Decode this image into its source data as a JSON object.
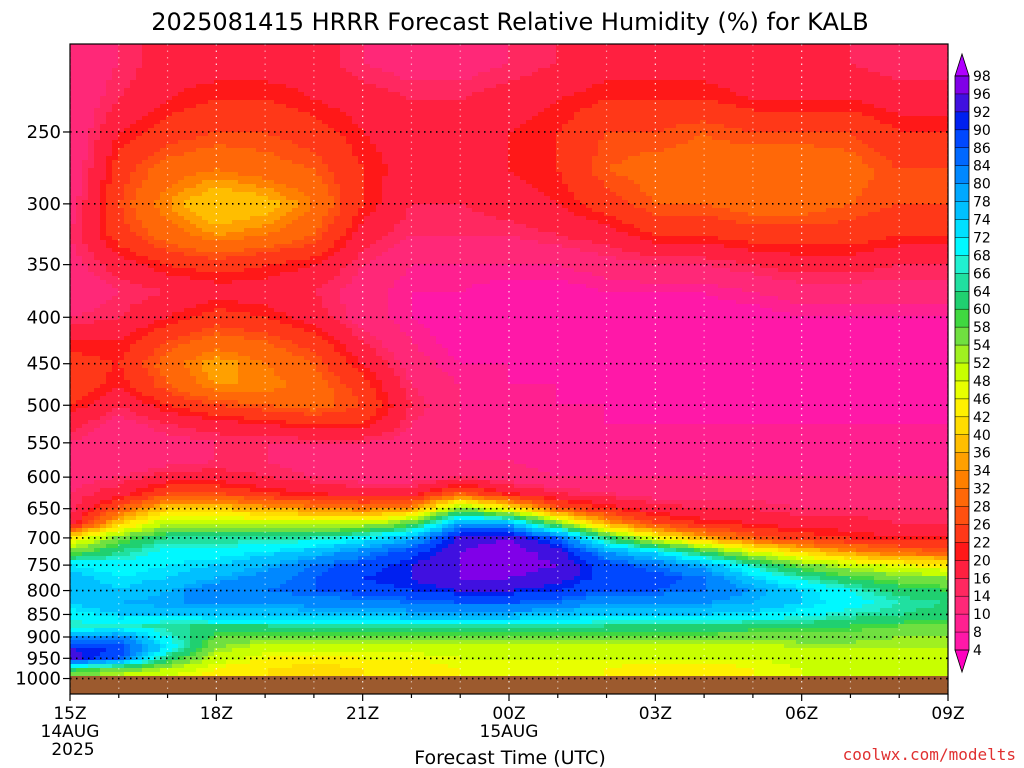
{
  "chart_data": {
    "type": "heatmap",
    "title": "2025081415 HRRR Forecast Relative Humidity (%) for KALB",
    "xlabel": "Forecast Time (UTC)",
    "ylabel": "",
    "credit": "coolwx.com/modelts",
    "y_scale": "log",
    "y_reversed": true,
    "ylim": [
      1040,
      200
    ],
    "y_ticks": [
      250,
      300,
      350,
      400,
      450,
      500,
      550,
      600,
      650,
      700,
      750,
      800,
      850,
      900,
      950,
      1000
    ],
    "x_ticks": [
      {
        "h": 15,
        "label": "15Z",
        "sub1": "14AUG",
        "sub2": "2025"
      },
      {
        "h": 18,
        "label": "18Z",
        "sub1": "",
        "sub2": ""
      },
      {
        "h": 21,
        "label": "21Z",
        "sub1": "",
        "sub2": ""
      },
      {
        "h": 24,
        "label": "00Z",
        "sub1": "15AUG",
        "sub2": ""
      },
      {
        "h": 27,
        "label": "03Z",
        "sub1": "",
        "sub2": ""
      },
      {
        "h": 30,
        "label": "06Z",
        "sub1": "",
        "sub2": ""
      },
      {
        "h": 33,
        "label": "09Z",
        "sub1": "",
        "sub2": ""
      }
    ],
    "xlim": [
      15,
      33
    ],
    "grid": true,
    "ground_color": "#9c5a2e",
    "colorbar": {
      "levels": [
        4,
        8,
        10,
        14,
        16,
        20,
        22,
        26,
        28,
        32,
        34,
        36,
        40,
        42,
        46,
        48,
        52,
        54,
        58,
        60,
        64,
        66,
        68,
        72,
        74,
        78,
        80,
        84,
        86,
        90,
        92,
        96,
        98
      ],
      "colors": [
        "#ff00c0",
        "#ff18a8",
        "#ff2090",
        "#ff2878",
        "#ff2860",
        "#ff2040",
        "#ff1818",
        "#ff3818",
        "#ff5010",
        "#ff6808",
        "#ff8000",
        "#ffa000",
        "#ffbe00",
        "#ffdc00",
        "#fff000",
        "#e8ff00",
        "#c8ff00",
        "#a0f020",
        "#70e040",
        "#40d840",
        "#20d070",
        "#20e0a0",
        "#20f0d0",
        "#00f8ff",
        "#00e0ff",
        "#00c0ff",
        "#00a8ff",
        "#0088ff",
        "#0068ff",
        "#0048ff",
        "#0020f0",
        "#4010e0",
        "#8000e8",
        "#b000ff"
      ]
    },
    "profiles": {
      "hours": [
        15,
        16,
        17,
        18,
        19,
        20,
        21,
        22,
        23,
        24,
        25,
        26,
        27,
        28,
        29,
        30,
        31,
        32,
        33
      ],
      "pressures": [
        210,
        230,
        250,
        275,
        300,
        325,
        350,
        375,
        400,
        425,
        450,
        475,
        500,
        525,
        550,
        575,
        600,
        625,
        650,
        675,
        700,
        725,
        750,
        775,
        800,
        825,
        850,
        875,
        900,
        925,
        950,
        975,
        1000
      ],
      "rh": [
        [
          10,
          10,
          10,
          10,
          12,
          14,
          12,
          10,
          14,
          20,
          24,
          26,
          22,
          18,
          14,
          12,
          12,
          14,
          14,
          18,
          42,
          56,
          72,
          76,
          78,
          74,
          70,
          66,
          80,
          92,
          94,
          62,
          52
        ],
        [
          14,
          16,
          20,
          24,
          26,
          24,
          18,
          14,
          16,
          20,
          22,
          20,
          16,
          12,
          10,
          10,
          14,
          18,
          28,
          40,
          56,
          64,
          70,
          72,
          74,
          78,
          74,
          68,
          82,
          90,
          86,
          58,
          48
        ],
        [
          18,
          20,
          24,
          30,
          34,
          30,
          22,
          16,
          20,
          26,
          30,
          28,
          22,
          16,
          12,
          12,
          18,
          26,
          40,
          52,
          64,
          70,
          72,
          74,
          78,
          80,
          74,
          64,
          68,
          72,
          62,
          52,
          46
        ],
        [
          18,
          22,
          26,
          32,
          40,
          34,
          24,
          18,
          24,
          30,
          36,
          34,
          26,
          18,
          14,
          14,
          18,
          26,
          40,
          52,
          64,
          70,
          74,
          78,
          84,
          80,
          76,
          64,
          58,
          54,
          50,
          46,
          44
        ],
        [
          18,
          22,
          26,
          30,
          38,
          32,
          22,
          18,
          22,
          28,
          32,
          34,
          28,
          20,
          14,
          14,
          16,
          22,
          36,
          50,
          64,
          72,
          78,
          82,
          84,
          80,
          76,
          64,
          56,
          50,
          46,
          42,
          42
        ],
        [
          18,
          20,
          24,
          28,
          32,
          28,
          20,
          16,
          18,
          24,
          28,
          30,
          30,
          22,
          14,
          12,
          14,
          20,
          34,
          50,
          66,
          76,
          84,
          86,
          86,
          82,
          76,
          66,
          56,
          50,
          44,
          40,
          40
        ],
        [
          14,
          18,
          20,
          22,
          22,
          18,
          14,
          12,
          12,
          16,
          20,
          24,
          26,
          22,
          14,
          10,
          12,
          18,
          32,
          50,
          70,
          82,
          88,
          90,
          88,
          82,
          76,
          66,
          56,
          50,
          46,
          42,
          42
        ],
        [
          12,
          16,
          18,
          18,
          16,
          14,
          10,
          8,
          8,
          10,
          12,
          14,
          16,
          14,
          12,
          10,
          12,
          18,
          34,
          58,
          78,
          88,
          92,
          92,
          90,
          84,
          78,
          66,
          56,
          50,
          46,
          44,
          44
        ],
        [
          12,
          16,
          18,
          18,
          16,
          14,
          10,
          8,
          6,
          6,
          8,
          10,
          10,
          10,
          10,
          10,
          14,
          28,
          56,
          80,
          94,
          96,
          96,
          96,
          92,
          86,
          78,
          66,
          56,
          50,
          48,
          46,
          46
        ],
        [
          14,
          18,
          20,
          20,
          18,
          14,
          10,
          6,
          6,
          6,
          8,
          8,
          8,
          8,
          8,
          10,
          12,
          20,
          44,
          78,
          96,
          98,
          98,
          96,
          92,
          86,
          78,
          66,
          56,
          50,
          48,
          46,
          46
        ],
        [
          16,
          20,
          22,
          22,
          20,
          16,
          10,
          6,
          6,
          6,
          6,
          8,
          8,
          8,
          8,
          8,
          10,
          16,
          28,
          56,
          86,
          94,
          96,
          94,
          90,
          84,
          76,
          66,
          56,
          50,
          48,
          46,
          46
        ],
        [
          18,
          22,
          26,
          28,
          24,
          18,
          12,
          8,
          6,
          6,
          6,
          6,
          8,
          8,
          8,
          8,
          10,
          14,
          22,
          36,
          62,
          80,
          88,
          88,
          86,
          80,
          74,
          64,
          56,
          50,
          48,
          46,
          46
        ],
        [
          18,
          22,
          26,
          30,
          28,
          22,
          14,
          8,
          6,
          6,
          6,
          6,
          6,
          8,
          8,
          8,
          10,
          12,
          18,
          26,
          46,
          72,
          84,
          88,
          86,
          80,
          74,
          64,
          56,
          50,
          48,
          44,
          46
        ],
        [
          18,
          22,
          28,
          30,
          28,
          22,
          14,
          8,
          6,
          6,
          6,
          6,
          6,
          8,
          8,
          8,
          10,
          12,
          16,
          22,
          36,
          60,
          78,
          84,
          84,
          80,
          74,
          64,
          56,
          50,
          48,
          44,
          46
        ],
        [
          16,
          20,
          26,
          32,
          30,
          24,
          16,
          10,
          6,
          6,
          6,
          6,
          6,
          8,
          8,
          8,
          10,
          12,
          16,
          20,
          28,
          48,
          66,
          74,
          80,
          78,
          72,
          62,
          56,
          50,
          48,
          46,
          46
        ],
        [
          16,
          20,
          26,
          32,
          30,
          24,
          18,
          12,
          8,
          6,
          6,
          6,
          6,
          8,
          8,
          8,
          10,
          12,
          14,
          18,
          24,
          40,
          56,
          66,
          74,
          74,
          70,
          62,
          56,
          52,
          50,
          48,
          48
        ],
        [
          16,
          20,
          26,
          30,
          28,
          24,
          18,
          12,
          8,
          6,
          6,
          6,
          6,
          8,
          8,
          8,
          10,
          12,
          14,
          18,
          22,
          34,
          50,
          60,
          68,
          70,
          66,
          60,
          56,
          52,
          50,
          48,
          48
        ],
        [
          14,
          18,
          22,
          26,
          26,
          22,
          16,
          12,
          8,
          6,
          6,
          6,
          6,
          8,
          8,
          8,
          10,
          12,
          14,
          16,
          20,
          30,
          46,
          56,
          62,
          66,
          64,
          58,
          54,
          52,
          50,
          48,
          48
        ],
        [
          14,
          18,
          22,
          26,
          26,
          22,
          16,
          12,
          8,
          6,
          6,
          6,
          6,
          8,
          8,
          8,
          10,
          12,
          14,
          16,
          20,
          28,
          44,
          54,
          60,
          64,
          62,
          58,
          54,
          52,
          50,
          48,
          48
        ]
      ]
    }
  }
}
